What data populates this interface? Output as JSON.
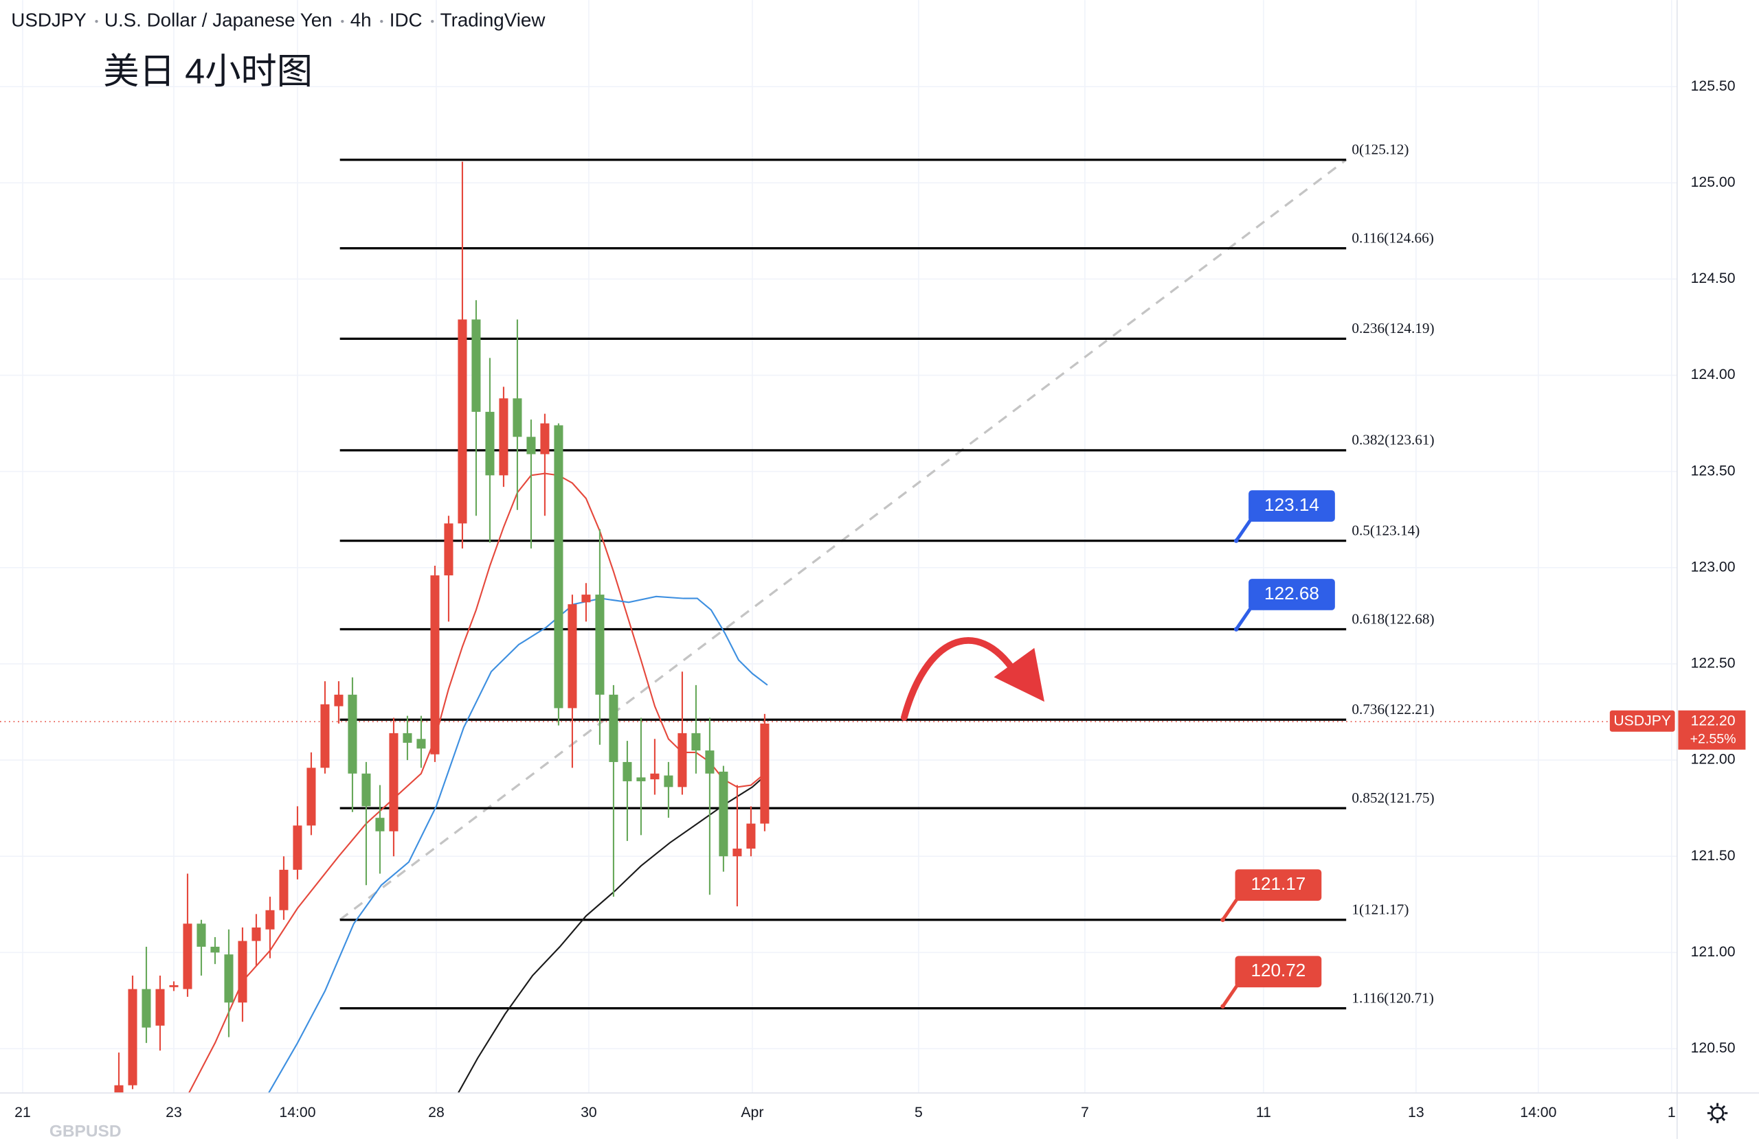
{
  "header": {
    "items": [
      "USDJPY",
      "U.S. Dollar / Japanese Yen",
      "4h",
      "IDC",
      "TradingView"
    ]
  },
  "chart_data": {
    "type": "candlestick",
    "title": "美日 4小时图",
    "symbol": "USDJPY",
    "faint_label": "GBPUSD",
    "up_color": "#e5483c",
    "down_color": "#67a85a",
    "categories": [
      null,
      null,
      null,
      null,
      null,
      null,
      null,
      null,
      null,
      null,
      null,
      null,
      null,
      null,
      null,
      null,
      null,
      null,
      null,
      null,
      null,
      null,
      null,
      null,
      null,
      null,
      null,
      null,
      null,
      null,
      null,
      null,
      null,
      null,
      null,
      null,
      null,
      null,
      null,
      null,
      null,
      null,
      null,
      null,
      null,
      null,
      null,
      null
    ],
    "open": [
      120.27,
      120.31,
      120.81,
      120.62,
      120.82,
      120.81,
      121.15,
      121.03,
      120.99,
      120.74,
      121.06,
      121.12,
      121.22,
      121.43,
      121.66,
      121.96,
      122.28,
      122.34,
      121.93,
      121.7,
      121.63,
      122.14,
      122.11,
      122.03,
      122.96,
      123.23,
      124.29,
      123.81,
      123.48,
      123.88,
      123.68,
      123.59,
      123.74,
      122.27,
      122.82,
      122.86,
      122.34,
      121.99,
      121.91,
      121.9,
      121.92,
      121.86,
      122.14,
      122.05,
      121.94,
      121.5,
      121.54,
      121.67
    ],
    "high": [
      120.48,
      120.88,
      121.03,
      120.88,
      120.85,
      121.41,
      121.17,
      121.08,
      121.12,
      121.13,
      121.2,
      121.29,
      121.5,
      121.76,
      122.04,
      122.41,
      122.41,
      122.43,
      121.99,
      121.87,
      122.22,
      122.23,
      122.23,
      123.01,
      123.27,
      125.11,
      124.39,
      124.09,
      123.94,
      124.29,
      123.77,
      123.8,
      123.75,
      122.86,
      122.92,
      123.2,
      122.39,
      122.1,
      122.22,
      122.11,
      121.99,
      122.46,
      122.39,
      122.22,
      121.97,
      121.87,
      121.76,
      122.24
    ],
    "low": [
      120.27,
      120.29,
      120.53,
      120.49,
      120.8,
      120.77,
      120.88,
      120.94,
      120.56,
      120.64,
      120.93,
      120.97,
      121.17,
      121.38,
      121.61,
      121.93,
      122.19,
      121.73,
      121.35,
      121.41,
      121.5,
      122.0,
      121.96,
      121.99,
      122.72,
      123.1,
      123.27,
      123.13,
      123.42,
      123.3,
      123.1,
      123.27,
      122.18,
      121.96,
      122.72,
      122.08,
      121.29,
      121.58,
      121.61,
      121.82,
      121.7,
      121.82,
      121.93,
      121.3,
      121.42,
      121.24,
      121.5,
      121.63
    ],
    "close": [
      120.31,
      120.81,
      120.61,
      120.81,
      120.83,
      121.15,
      121.03,
      121.0,
      120.74,
      121.06,
      121.13,
      121.22,
      121.43,
      121.66,
      121.96,
      122.29,
      122.34,
      121.93,
      121.76,
      121.63,
      122.14,
      122.09,
      122.06,
      122.96,
      123.23,
      124.29,
      123.81,
      123.48,
      123.88,
      123.68,
      123.59,
      123.75,
      122.27,
      122.81,
      122.86,
      122.34,
      121.99,
      121.89,
      121.89,
      121.93,
      121.86,
      122.14,
      122.05,
      121.93,
      121.5,
      121.54,
      121.67,
      122.19
    ],
    "overlays": [
      {
        "color": "#e5483c",
        "x": [
          5.1,
          7,
          9,
          11,
          13,
          15,
          16,
          18,
          20,
          22,
          23,
          24,
          25,
          26,
          27,
          28,
          29,
          30,
          31,
          32,
          33,
          34,
          35,
          36,
          37,
          38,
          39,
          40,
          41,
          42,
          43,
          44,
          45,
          46,
          47
        ],
        "values": [
          120.27,
          120.53,
          120.85,
          121.01,
          121.23,
          121.41,
          121.5,
          121.67,
          121.8,
          121.93,
          122.11,
          122.37,
          122.59,
          122.78,
          123.01,
          123.21,
          123.39,
          123.48,
          123.49,
          123.48,
          123.44,
          123.36,
          123.19,
          122.98,
          122.75,
          122.52,
          122.28,
          122.11,
          122.04,
          122.04,
          121.99,
          121.9,
          121.86,
          121.87,
          121.93
        ]
      },
      {
        "color": "#3d8fe0",
        "x": [
          10.9,
          13,
          15,
          17.1,
          19.1,
          21.1,
          23.1,
          25.1,
          27.1,
          29.1,
          31.1,
          32.1,
          33.1,
          35.1,
          37.1,
          39.1,
          41.1,
          42.1,
          43.1,
          44.1,
          45.1,
          46.1,
          47.2
        ],
        "values": [
          120.27,
          120.53,
          120.8,
          121.15,
          121.35,
          121.47,
          121.76,
          122.17,
          122.46,
          122.6,
          122.69,
          122.75,
          122.81,
          122.84,
          122.82,
          122.85,
          122.84,
          122.84,
          122.78,
          122.66,
          122.52,
          122.45,
          122.39
        ]
      },
      {
        "color": "#1a1a1a",
        "x": [
          24.7,
          26.1,
          28.1,
          30.1,
          32.1,
          34,
          36.1,
          38,
          40.1,
          42.1,
          44.1,
          46.1,
          47.2
        ],
        "values": [
          120.27,
          120.45,
          120.68,
          120.88,
          121.03,
          121.19,
          121.32,
          121.45,
          121.57,
          121.67,
          121.77,
          121.86,
          121.93
        ]
      }
    ],
    "fib_levels": [
      {
        "label": "0(125.12)",
        "value": 125.12
      },
      {
        "label": "0.116(124.66)",
        "value": 124.66
      },
      {
        "label": "0.236(124.19)",
        "value": 124.19
      },
      {
        "label": "0.382(123.61)",
        "value": 123.61
      },
      {
        "label": "0.5(123.14)",
        "value": 123.14
      },
      {
        "label": "0.618(122.68)",
        "value": 122.68
      },
      {
        "label": "0.736(122.21)",
        "value": 122.21
      },
      {
        "label": "0.852(121.75)",
        "value": 121.75
      },
      {
        "label": "1(121.17)",
        "value": 121.17
      },
      {
        "label": "1.116(120.71)",
        "value": 120.71
      }
    ],
    "price_callouts": [
      {
        "value": 123.14,
        "color": "#2f5fe8"
      },
      {
        "value": 122.68,
        "color": "#2f5fe8"
      },
      {
        "value": 121.17,
        "color": "#e5483c"
      },
      {
        "value": 120.72,
        "color": "#e5483c"
      }
    ],
    "last_price": {
      "value": 122.2,
      "label": "122.20"
    },
    "last_change": "+2.55%",
    "ylim": [
      120.27,
      125.95
    ],
    "yticks": [
      {
        "value": 120.5,
        "label": "120.50"
      },
      {
        "value": 121,
        "label": "121.00"
      },
      {
        "value": 121.5,
        "label": "121.50"
      },
      {
        "value": 122,
        "label": "122.00"
      },
      {
        "value": 122.5,
        "label": "122.50"
      },
      {
        "value": 123,
        "label": "123.00"
      },
      {
        "value": 123.5,
        "label": "123.50"
      },
      {
        "value": 124,
        "label": "124.00"
      },
      {
        "value": 124.5,
        "label": "124.50"
      },
      {
        "value": 125,
        "label": "125.00"
      },
      {
        "value": 125.5,
        "label": "125.50"
      }
    ],
    "xlim": [
      -8.65,
      113.4
    ],
    "xticks": [
      {
        "value": -7,
        "label": "21"
      },
      {
        "value": 4,
        "label": "23"
      },
      {
        "value": 13,
        "label": "14:00"
      },
      {
        "value": 23.1,
        "label": "28"
      },
      {
        "value": 34.2,
        "label": "30"
      },
      {
        "value": 46.1,
        "label": "Apr"
      },
      {
        "value": 58.2,
        "label": "5"
      },
      {
        "value": 70.3,
        "label": "7"
      },
      {
        "value": 83.3,
        "label": "11"
      },
      {
        "value": 94.4,
        "label": "13"
      },
      {
        "value": 103.3,
        "label": "14:00"
      },
      {
        "value": 113,
        "label": "1"
      }
    ],
    "grid": true
  }
}
